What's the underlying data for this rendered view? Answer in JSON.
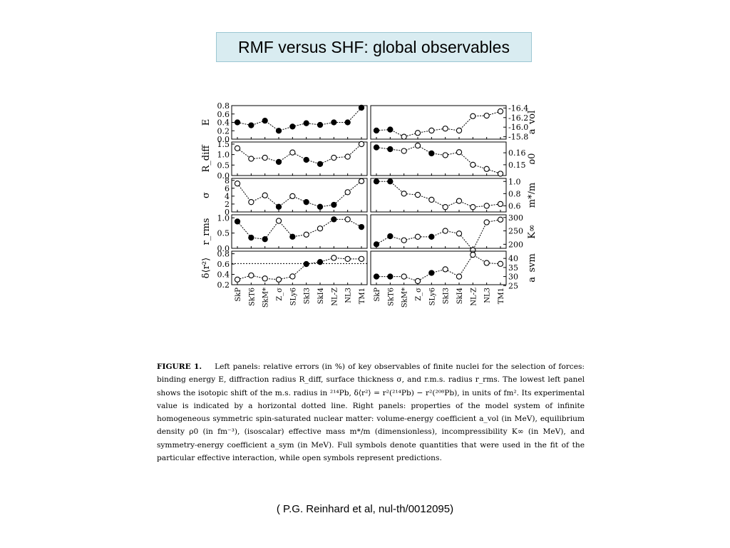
{
  "slide": {
    "title": "RMF versus SHF: global observables",
    "citation": "( P.G. Reinhard et al, nul-th/0012095)"
  },
  "caption": {
    "label": "FIGURE 1.",
    "text": "Left panels: relative errors (in %) of key observables of finite nuclei for the selection of forces: binding energy E, diffraction radius R_diff, surface thickness σ, and r.m.s. radius r_rms. The lowest left panel shows the isotopic shift of the m.s. radius in ²¹⁴Pb, δ⟨r²⟩ = r²(²¹⁴Pb) − r²(²⁰⁸Pb), in units of fm². Its experimental value is indicated by a horizontal dotted line. Right panels: properties of the model system of infinite homogeneous symmetric spin-saturated nuclear matter: volume-energy coefficient a_vol (in MeV), equilibrium density ρ0 (in fm⁻³), (isoscalar) effective mass m*/m (dimensionless), incompressibility K∞ (in MeV), and symmetry-energy coefficient a_sym (in MeV). Full symbols denote quantities that were used in the fit of the particular effective interaction, while open symbols represent predictions."
  },
  "chart_data": [
    {
      "type": "line",
      "side": "left",
      "ylabel": "E",
      "ylim": [
        0.0,
        0.8
      ],
      "yticks": [
        "0.0",
        "0.2",
        "0.4",
        "0.6",
        "0.8"
      ],
      "ytick_values": [
        0.0,
        0.2,
        0.4,
        0.6,
        0.8
      ],
      "values": [
        0.4,
        0.33,
        0.44,
        0.2,
        0.3,
        0.38,
        0.34,
        0.4,
        0.4,
        0.75
      ],
      "filled": [
        true,
        true,
        true,
        true,
        true,
        true,
        true,
        true,
        true,
        true
      ]
    },
    {
      "type": "line",
      "side": "left",
      "ylabel": "R_diff",
      "ylim": [
        0.0,
        1.6
      ],
      "yticks": [
        "0.0",
        "0.5",
        "1.0",
        "1.5"
      ],
      "ytick_values": [
        0.0,
        0.5,
        1.0,
        1.5
      ],
      "values": [
        1.3,
        0.8,
        0.85,
        0.65,
        1.1,
        0.75,
        0.55,
        0.85,
        0.9,
        1.5
      ],
      "filled": [
        false,
        false,
        false,
        true,
        false,
        true,
        true,
        false,
        false,
        false
      ]
    },
    {
      "type": "line",
      "side": "left",
      "ylabel": "σ",
      "ylim": [
        0,
        8.5
      ],
      "yticks": [
        "0",
        "2",
        "4",
        "6",
        "8"
      ],
      "ytick_values": [
        0,
        2,
        4,
        6,
        8
      ],
      "values": [
        7.2,
        2.5,
        4.2,
        1.3,
        4.0,
        2.5,
        1.3,
        1.8,
        5.0,
        7.8
      ],
      "filled": [
        false,
        false,
        false,
        true,
        false,
        true,
        true,
        true,
        false,
        false
      ]
    },
    {
      "type": "line",
      "side": "left",
      "ylabel": "r_rms",
      "ylim": [
        0.0,
        1.1
      ],
      "yticks": [
        "0.0",
        "0.5",
        "1.0"
      ],
      "ytick_values": [
        0.0,
        0.5,
        1.0
      ],
      "values": [
        0.88,
        0.35,
        0.3,
        0.9,
        0.38,
        0.45,
        0.65,
        0.95,
        0.95,
        0.7
      ],
      "filled": [
        true,
        true,
        true,
        false,
        true,
        false,
        false,
        true,
        false,
        true
      ]
    },
    {
      "type": "line",
      "side": "left",
      "ylabel": "δ⟨r²⟩",
      "ylim": [
        0.2,
        0.85
      ],
      "yticks": [
        "0.2",
        "0.4",
        "0.6",
        "0.8"
      ],
      "ytick_values": [
        0.2,
        0.4,
        0.6,
        0.8
      ],
      "reference_line": 0.61,
      "values": [
        0.3,
        0.38,
        0.32,
        0.3,
        0.36,
        0.6,
        0.64,
        0.72,
        0.7,
        0.7
      ],
      "filled": [
        false,
        false,
        false,
        false,
        false,
        true,
        true,
        false,
        false,
        false
      ]
    },
    {
      "type": "line",
      "side": "right",
      "ylabel": "a_vol",
      "ylim": [
        -15.75,
        -16.45
      ],
      "yticks": [
        "-16.4",
        "-16.2",
        "-16.0",
        "-15.8"
      ],
      "ytick_values": [
        -16.4,
        -16.2,
        -16.0,
        -15.8
      ],
      "values": [
        -15.93,
        -15.95,
        -15.8,
        -15.88,
        -15.93,
        -15.97,
        -15.93,
        -16.23,
        -16.24,
        -16.33
      ],
      "filled": [
        true,
        true,
        false,
        false,
        false,
        false,
        false,
        false,
        false,
        false
      ]
    },
    {
      "type": "line",
      "side": "right",
      "ylabel": "ρ0",
      "ylim": [
        0.141,
        0.169
      ],
      "yticks": [
        "0.15",
        "0.16"
      ],
      "ytick_values": [
        0.15,
        0.16
      ],
      "values": [
        0.1645,
        0.163,
        0.1615,
        0.166,
        0.1595,
        0.158,
        0.1605,
        0.15,
        0.1465,
        0.1425
      ],
      "filled": [
        true,
        true,
        false,
        false,
        true,
        false,
        false,
        false,
        false,
        false
      ]
    },
    {
      "type": "line",
      "side": "right",
      "ylabel": "m*/m",
      "ylim": [
        0.5,
        1.05
      ],
      "yticks": [
        "0.6",
        "0.8",
        "1.0"
      ],
      "ytick_values": [
        0.6,
        0.8,
        1.0
      ],
      "values": [
        1.0,
        1.0,
        0.8,
        0.78,
        0.7,
        0.58,
        0.68,
        0.58,
        0.6,
        0.63
      ],
      "filled": [
        true,
        true,
        false,
        false,
        false,
        false,
        false,
        false,
        false,
        false
      ]
    },
    {
      "type": "line",
      "side": "right",
      "ylabel": "K∞",
      "ylim": [
        185,
        310
      ],
      "yticks": [
        "200",
        "250",
        "300"
      ],
      "ytick_values": [
        200,
        250,
        300
      ],
      "values": [
        200,
        230,
        215,
        228,
        228,
        250,
        240,
        178,
        282,
        292
      ],
      "filled": [
        true,
        true,
        false,
        false,
        true,
        false,
        false,
        false,
        false,
        false
      ]
    },
    {
      "type": "line",
      "side": "right",
      "ylabel": "a_sym",
      "ylim": [
        25.5,
        44
      ],
      "yticks": [
        "25",
        "30",
        "35",
        "40"
      ],
      "ytick_values": [
        25,
        30,
        35,
        40
      ],
      "values": [
        30.0,
        30.0,
        30.0,
        27.5,
        32.0,
        34.0,
        30.0,
        42.0,
        37.5,
        37.0
      ],
      "filled": [
        true,
        true,
        false,
        false,
        true,
        false,
        false,
        false,
        false,
        false
      ]
    }
  ],
  "chart_categories": [
    "SkP",
    "SkT6",
    "SkM*",
    "Z_σ",
    "SLy6",
    "SkI3",
    "SkI4",
    "NL-Z",
    "NL3",
    "TM1"
  ],
  "colors": {
    "title_bg": "#d9ecf1",
    "title_border": "#9cc7d3",
    "ink": "#000000"
  }
}
